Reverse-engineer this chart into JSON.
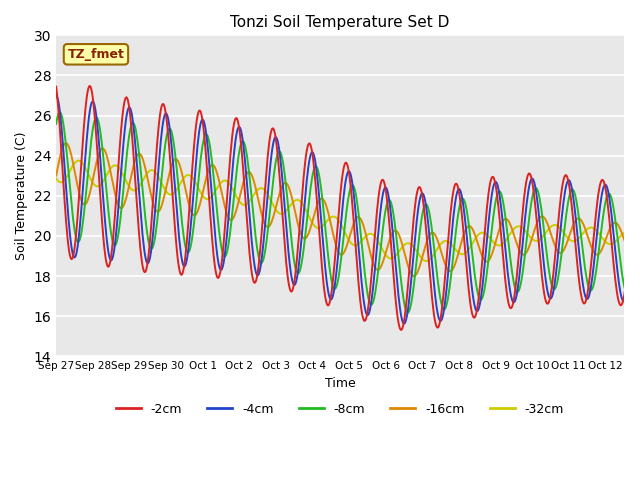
{
  "title": "Tonzi Soil Temperature Set D",
  "xlabel": "Time",
  "ylabel": "Soil Temperature (C)",
  "ylim": [
    14,
    30
  ],
  "background_color": "#e8e8e8",
  "grid_color": "white",
  "series_colors": {
    "-2cm": "#dd2222",
    "-4cm": "#2244cc",
    "-8cm": "#22bb22",
    "-16cm": "#dd8800",
    "-32cm": "#cccc00"
  },
  "annotation_text": "TZ_fmet",
  "annotation_box_facecolor": "#ffffaa",
  "annotation_box_edgecolor": "#996600",
  "annotation_text_color": "#882200",
  "tick_labels": [
    "Sep 27",
    "Sep 28",
    "Sep 29",
    "Sep 30",
    "Oct 1",
    "Oct 2",
    "Oct 3",
    "Oct 4",
    "Oct 5",
    "Oct 6",
    "Oct 7",
    "Oct 8",
    "Oct 9",
    "Oct 10",
    "Oct 11",
    "Oct 12"
  ],
  "yticks": [
    14,
    16,
    18,
    20,
    22,
    24,
    26,
    28,
    30
  ]
}
